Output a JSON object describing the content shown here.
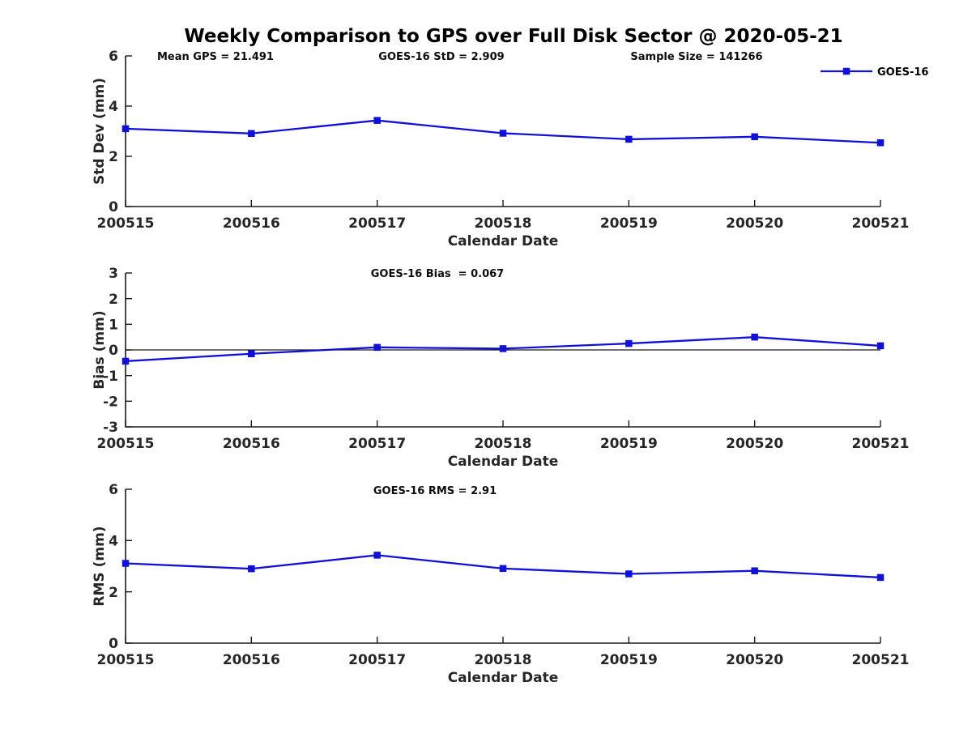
{
  "title": "Weekly Comparison to GPS over Full Disk Sector @ 2020-05-21",
  "legend": {
    "label": "GOES-16"
  },
  "colors": {
    "series_blue": "#1010d6",
    "axis": "#1a1a1a",
    "background": "#ffffff"
  },
  "chart_data": [
    {
      "type": "line",
      "categories": [
        "200515",
        "200516",
        "200517",
        "200518",
        "200519",
        "200520",
        "200521"
      ],
      "series": [
        {
          "name": "GOES-16",
          "values": [
            3.1,
            2.91,
            3.43,
            2.92,
            2.68,
            2.78,
            2.54
          ]
        }
      ],
      "title": "",
      "xlabel": "Calendar Date",
      "ylabel": "Std Dev (mm)",
      "ylim": [
        0,
        6
      ],
      "yticks": [
        0,
        2,
        4,
        6
      ],
      "grid": false,
      "zero_line": false,
      "legend_position": "top-right-outside",
      "annotations": [
        "Mean GPS = 21.491",
        "GOES-16 StD = 2.909",
        "Sample Size = 141266"
      ]
    },
    {
      "type": "line",
      "categories": [
        "200515",
        "200516",
        "200517",
        "200518",
        "200519",
        "200520",
        "200521"
      ],
      "series": [
        {
          "name": "GOES-16",
          "values": [
            -0.44,
            -0.15,
            0.1,
            0.05,
            0.25,
            0.5,
            0.16
          ]
        }
      ],
      "title": "",
      "xlabel": "Calendar Date",
      "ylabel": "Bias (mm)",
      "ylim": [
        -3,
        3
      ],
      "yticks": [
        -3,
        -2,
        -1,
        0,
        1,
        2,
        3
      ],
      "grid": false,
      "zero_line": true,
      "annotations": [
        "GOES-16 Bias  = 0.067"
      ]
    },
    {
      "type": "line",
      "categories": [
        "200515",
        "200516",
        "200517",
        "200518",
        "200519",
        "200520",
        "200521"
      ],
      "series": [
        {
          "name": "GOES-16",
          "values": [
            3.11,
            2.9,
            3.43,
            2.91,
            2.7,
            2.82,
            2.56
          ]
        }
      ],
      "title": "",
      "xlabel": "Calendar Date",
      "ylabel": "RMS (mm)",
      "ylim": [
        0,
        6
      ],
      "yticks": [
        0,
        2,
        4,
        6
      ],
      "grid": false,
      "zero_line": false,
      "annotations": [
        "GOES-16 RMS = 2.91"
      ]
    }
  ]
}
